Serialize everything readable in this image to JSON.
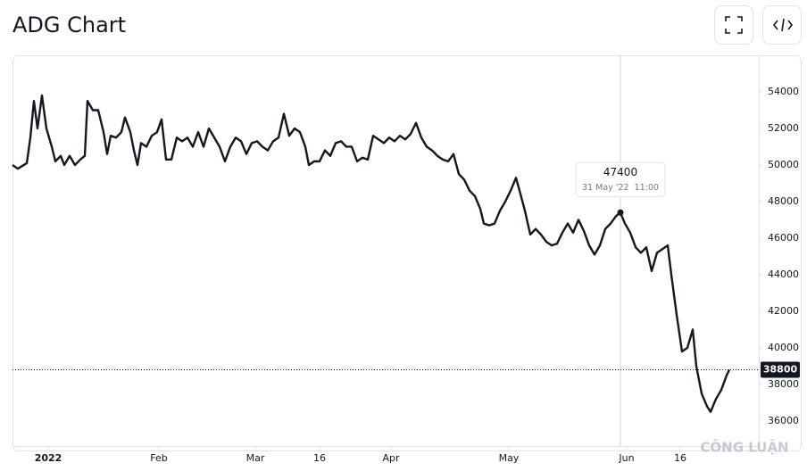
{
  "chart_data": {
    "type": "line",
    "title": "ADG Chart",
    "x": [
      -10,
      -8.5,
      -6,
      -5,
      -4,
      -3,
      -1.75,
      -0.5,
      1,
      2,
      3.5,
      4.5,
      6,
      7.5,
      9,
      10.25,
      11,
      12.5,
      14,
      15.5,
      16.5,
      17.5,
      19,
      20.5,
      21.5,
      23,
      24,
      25,
      26,
      27.5,
      29,
      30.5,
      31.75,
      33,
      34.5,
      36,
      37.5,
      39,
      40.5,
      42,
      43.5,
      45,
      46.5,
      48,
      49.5,
      51,
      52.5,
      54,
      55.5,
      57,
      58.5,
      60,
      61.5,
      63,
      64.5,
      66,
      67.5,
      69,
      70.5,
      72,
      73,
      74.5,
      76,
      77.5,
      79,
      80.5,
      82,
      83.5,
      85,
      86.5,
      88,
      89.5,
      91,
      92.5,
      94,
      95.5,
      97,
      98.5,
      100,
      101.5,
      103,
      104.5,
      106,
      107.5,
      109,
      110.5,
      112,
      113.5,
      115,
      116.5,
      118,
      119.5,
      121,
      122,
      123.5,
      125,
      126.5,
      128,
      129.5,
      131,
      132,
      133.5,
      135,
      136.5,
      138,
      139.5,
      141,
      142.5,
      144,
      145.5,
      147,
      148.5,
      150,
      151.5,
      153,
      154.5,
      156,
      157.5,
      159,
      160.25,
      161.5,
      163,
      164.5,
      166,
      167.5,
      169,
      170.5,
      172,
      173.5,
      174.5,
      176,
      177.5,
      179,
      180.5,
      181.5,
      183,
      184.5,
      185.5,
      187,
      188.5,
      190,
      190.75
    ],
    "series": [
      {
        "name": "ADG",
        "color": "#131722",
        "values": [
          50000,
          49800,
          50100,
          51500,
          53500,
          52000,
          53800,
          52000,
          51000,
          50200,
          50500,
          50000,
          50500,
          50000,
          50300,
          50500,
          53500,
          53000,
          53000,
          51800,
          50600,
          51600,
          51500,
          51800,
          52600,
          51800,
          50800,
          50000,
          51200,
          51000,
          51600,
          51800,
          52500,
          50300,
          50300,
          51500,
          51300,
          51500,
          51000,
          51800,
          51000,
          52000,
          51500,
          51000,
          50200,
          51000,
          51500,
          51300,
          50600,
          51200,
          51300,
          51000,
          50800,
          51300,
          51500,
          52800,
          51600,
          52000,
          51800,
          51000,
          50000,
          50200,
          50200,
          50800,
          50500,
          51200,
          51300,
          51000,
          51000,
          50200,
          50400,
          50300,
          51600,
          51400,
          51200,
          51500,
          51300,
          51600,
          51400,
          51700,
          52300,
          51500,
          51000,
          50800,
          50500,
          50300,
          50200,
          50600,
          49500,
          49200,
          48600,
          48300,
          47600,
          46800,
          46700,
          46800,
          47500,
          48000,
          48600,
          49300,
          48600,
          47500,
          46200,
          46500,
          46200,
          45800,
          45600,
          45700,
          46300,
          46800,
          46300,
          47000,
          46400,
          45600,
          45100,
          45600,
          46500,
          46800,
          47200,
          47400,
          46800,
          46300,
          45500,
          45200,
          45500,
          44200,
          45200,
          45400,
          45600,
          44000,
          41800,
          39800,
          40000,
          41000,
          39000,
          37500,
          36800,
          36500,
          37200,
          37700,
          38500,
          38800
        ]
      }
    ],
    "xlim": [
      -10,
      199
    ],
    "xticks": [
      {
        "value": 0,
        "label": "2022"
      },
      {
        "value": 31,
        "label": "Feb"
      },
      {
        "value": 58,
        "label": "Mar"
      },
      {
        "value": 76,
        "label": "16"
      },
      {
        "value": 96,
        "label": "Apr"
      },
      {
        "value": 129,
        "label": "May"
      },
      {
        "value": 162,
        "label": "Jun"
      },
      {
        "value": 177,
        "label": "16"
      }
    ],
    "ylim": [
      34630,
      56000
    ],
    "yticks": [
      36000,
      38000,
      40000,
      42000,
      44000,
      46000,
      48000,
      50000,
      52000,
      54000
    ],
    "tooltip": {
      "x": 160.25,
      "value": 47400,
      "date": "31 May '22  11:00"
    },
    "last_value": 38800,
    "watermark": "CÔNG LUẬN"
  }
}
